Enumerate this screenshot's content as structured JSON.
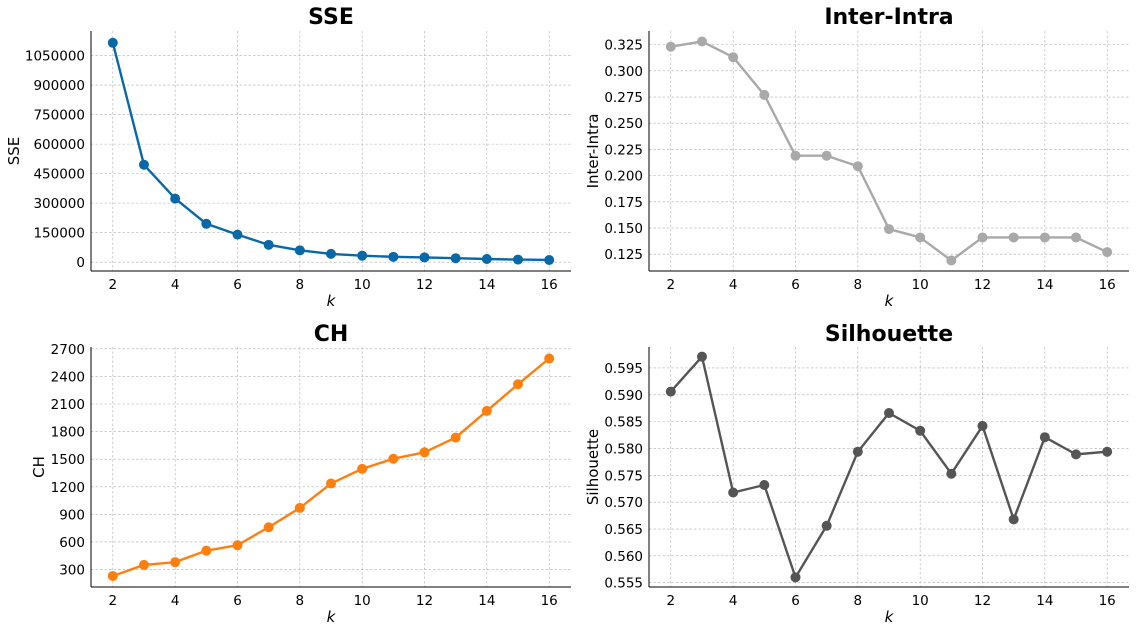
{
  "chart_data": [
    {
      "type": "line",
      "title": "SSE",
      "xlabel": "k",
      "ylabel": "SSE",
      "x": [
        2,
        3,
        4,
        5,
        6,
        7,
        8,
        9,
        10,
        11,
        12,
        13,
        14,
        15,
        16
      ],
      "series": [
        {
          "values": [
            1115000,
            495000,
            323000,
            195000,
            140000,
            88000,
            60000,
            42000,
            33000,
            27000,
            24000,
            20000,
            16000,
            13000,
            11000
          ]
        }
      ],
      "color": "#0868a8",
      "xlim": [
        1.3,
        16.7
      ],
      "ylim": [
        -45000,
        1175000
      ],
      "xticks": [
        2,
        4,
        6,
        8,
        10,
        12,
        14,
        16
      ],
      "yticks": [
        0,
        150000,
        300000,
        450000,
        600000,
        750000,
        900000,
        1050000
      ],
      "xtick_labels": [
        "2",
        "4",
        "6",
        "8",
        "10",
        "12",
        "14",
        "16"
      ],
      "ytick_labels": [
        "0",
        "150000",
        "300000",
        "450000",
        "600000",
        "750000",
        "900000",
        "1050000"
      ],
      "grid": true
    },
    {
      "type": "line",
      "title": "Inter-Intra",
      "xlabel": "k",
      "ylabel": "Inter-Intra",
      "x": [
        2,
        3,
        4,
        5,
        6,
        7,
        8,
        9,
        10,
        11,
        12,
        13,
        14,
        15,
        16
      ],
      "series": [
        {
          "values": [
            0.323,
            0.328,
            0.313,
            0.277,
            0.219,
            0.219,
            0.209,
            0.149,
            0.141,
            0.119,
            0.141,
            0.141,
            0.141,
            0.141,
            0.127
          ]
        }
      ],
      "color": "#a9a9a9",
      "xlim": [
        1.3,
        16.7
      ],
      "ylim": [
        0.109,
        0.338
      ],
      "xticks": [
        2,
        4,
        6,
        8,
        10,
        12,
        14,
        16
      ],
      "yticks": [
        0.125,
        0.15,
        0.175,
        0.2,
        0.225,
        0.25,
        0.275,
        0.3,
        0.325
      ],
      "xtick_labels": [
        "2",
        "4",
        "6",
        "8",
        "10",
        "12",
        "14",
        "16"
      ],
      "ytick_labels": [
        "0.125",
        "0.150",
        "0.175",
        "0.200",
        "0.225",
        "0.250",
        "0.275",
        "0.300",
        "0.325"
      ],
      "grid": true
    },
    {
      "type": "line",
      "title": "CH",
      "xlabel": "k",
      "ylabel": "CH",
      "x": [
        2,
        3,
        4,
        5,
        6,
        7,
        8,
        9,
        10,
        11,
        12,
        13,
        14,
        15,
        16
      ],
      "series": [
        {
          "values": [
            230,
            350,
            380,
            505,
            565,
            760,
            970,
            1235,
            1395,
            1505,
            1575,
            1735,
            2025,
            2315,
            2595
          ]
        }
      ],
      "color": "#ff7f0e",
      "xlim": [
        1.3,
        16.7
      ],
      "ylim": [
        110,
        2720
      ],
      "xticks": [
        2,
        4,
        6,
        8,
        10,
        12,
        14,
        16
      ],
      "yticks": [
        300,
        600,
        900,
        1200,
        1500,
        1800,
        2100,
        2400,
        2700
      ],
      "xtick_labels": [
        "2",
        "4",
        "6",
        "8",
        "10",
        "12",
        "14",
        "16"
      ],
      "ytick_labels": [
        "300",
        "600",
        "900",
        "1200",
        "1500",
        "1800",
        "2100",
        "2400",
        "2700"
      ],
      "grid": true
    },
    {
      "type": "line",
      "title": "Silhouette",
      "xlabel": "k",
      "ylabel": "Silhouette",
      "x": [
        2,
        3,
        4,
        5,
        6,
        7,
        8,
        9,
        10,
        11,
        12,
        13,
        14,
        15,
        16
      ],
      "series": [
        {
          "values": [
            0.5906,
            0.5971,
            0.5718,
            0.5732,
            0.556,
            0.5656,
            0.5794,
            0.5866,
            0.5833,
            0.5753,
            0.5842,
            0.5668,
            0.5821,
            0.5789,
            0.5794
          ]
        }
      ],
      "color": "#555555",
      "xlim": [
        1.3,
        16.7
      ],
      "ylim": [
        0.5542,
        0.5989
      ],
      "xticks": [
        2,
        4,
        6,
        8,
        10,
        12,
        14,
        16
      ],
      "yticks": [
        0.555,
        0.56,
        0.565,
        0.57,
        0.575,
        0.58,
        0.585,
        0.59,
        0.595
      ],
      "xtick_labels": [
        "2",
        "4",
        "6",
        "8",
        "10",
        "12",
        "14",
        "16"
      ],
      "ytick_labels": [
        "0.555",
        "0.560",
        "0.565",
        "0.570",
        "0.575",
        "0.580",
        "0.585",
        "0.590",
        "0.595"
      ],
      "grid": true
    }
  ]
}
